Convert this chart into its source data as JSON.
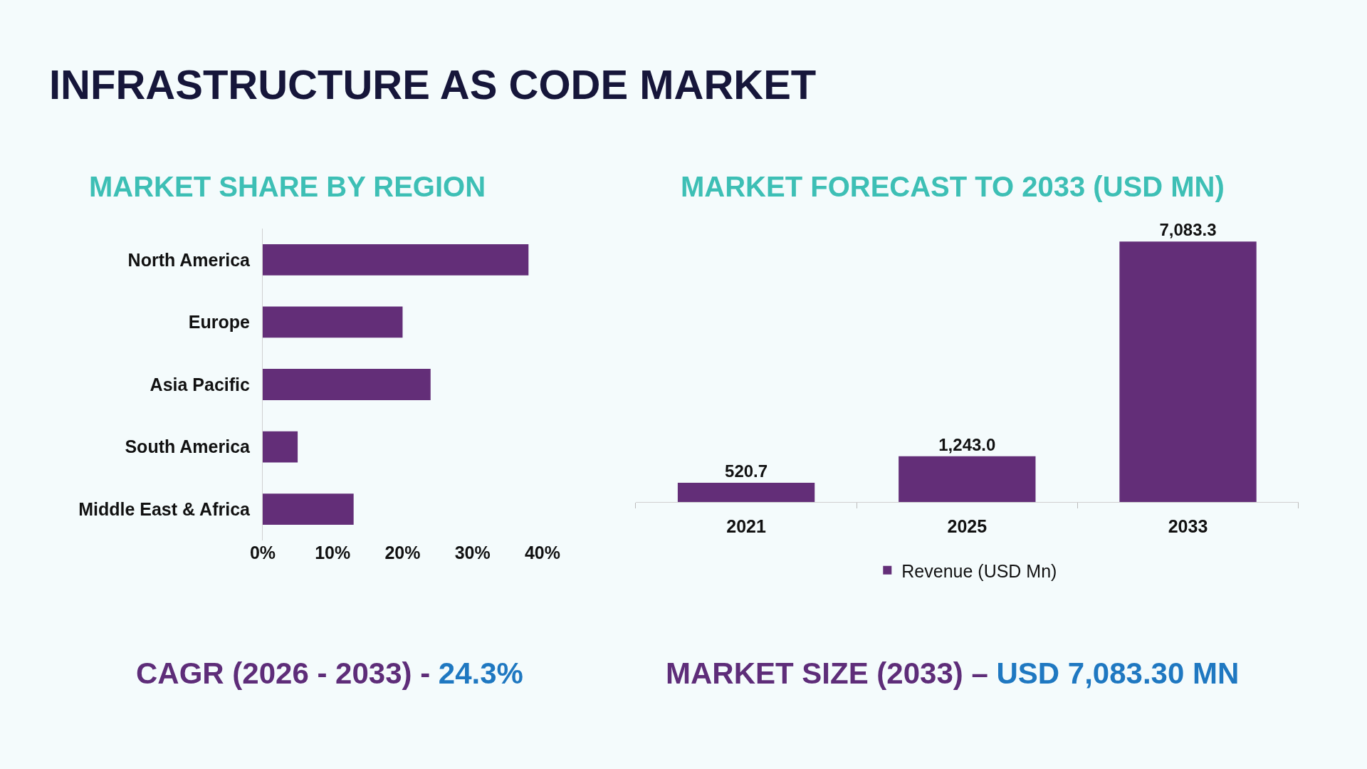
{
  "chart_data": [
    {
      "type": "bar",
      "orientation": "horizontal",
      "title": "MARKET SHARE BY REGION",
      "categories": [
        "North America",
        "Europe",
        "Asia Pacific",
        "South America",
        "Middle East & Africa"
      ],
      "values": [
        38,
        20,
        24,
        5,
        13
      ],
      "color": "#632e78",
      "xlim": [
        0,
        40
      ],
      "xticks": [
        {
          "value": 0,
          "label": "0%"
        },
        {
          "value": 10,
          "label": "10%"
        },
        {
          "value": 20,
          "label": "20%"
        },
        {
          "value": 30,
          "label": "30%"
        },
        {
          "value": 40,
          "label": "40%"
        }
      ],
      "grid": false,
      "legend": false
    },
    {
      "type": "bar",
      "title": "MARKET FORECAST TO 2033 (USD MN)",
      "categories": [
        "2021",
        "2025",
        "2033"
      ],
      "series": [
        {
          "name": "Revenue (USD Mn)",
          "color": "#632e78",
          "values": [
            520.7,
            1243.0,
            7083.3
          ],
          "value_labels": [
            "520.7",
            "1,243.0",
            "7,083.3"
          ]
        }
      ],
      "tick_labels": "x",
      "grid": false,
      "legend": "bottom"
    },
    {
      "type": "other",
      "title": "INFRASTRUCTURE AS CODE MARKET",
      "annotations": [
        "CAGR (2026 - 2033) -",
        "24.3%",
        "MARKET SIZE (2033) –",
        "USD 7,083.30 MN"
      ]
    }
  ]
}
